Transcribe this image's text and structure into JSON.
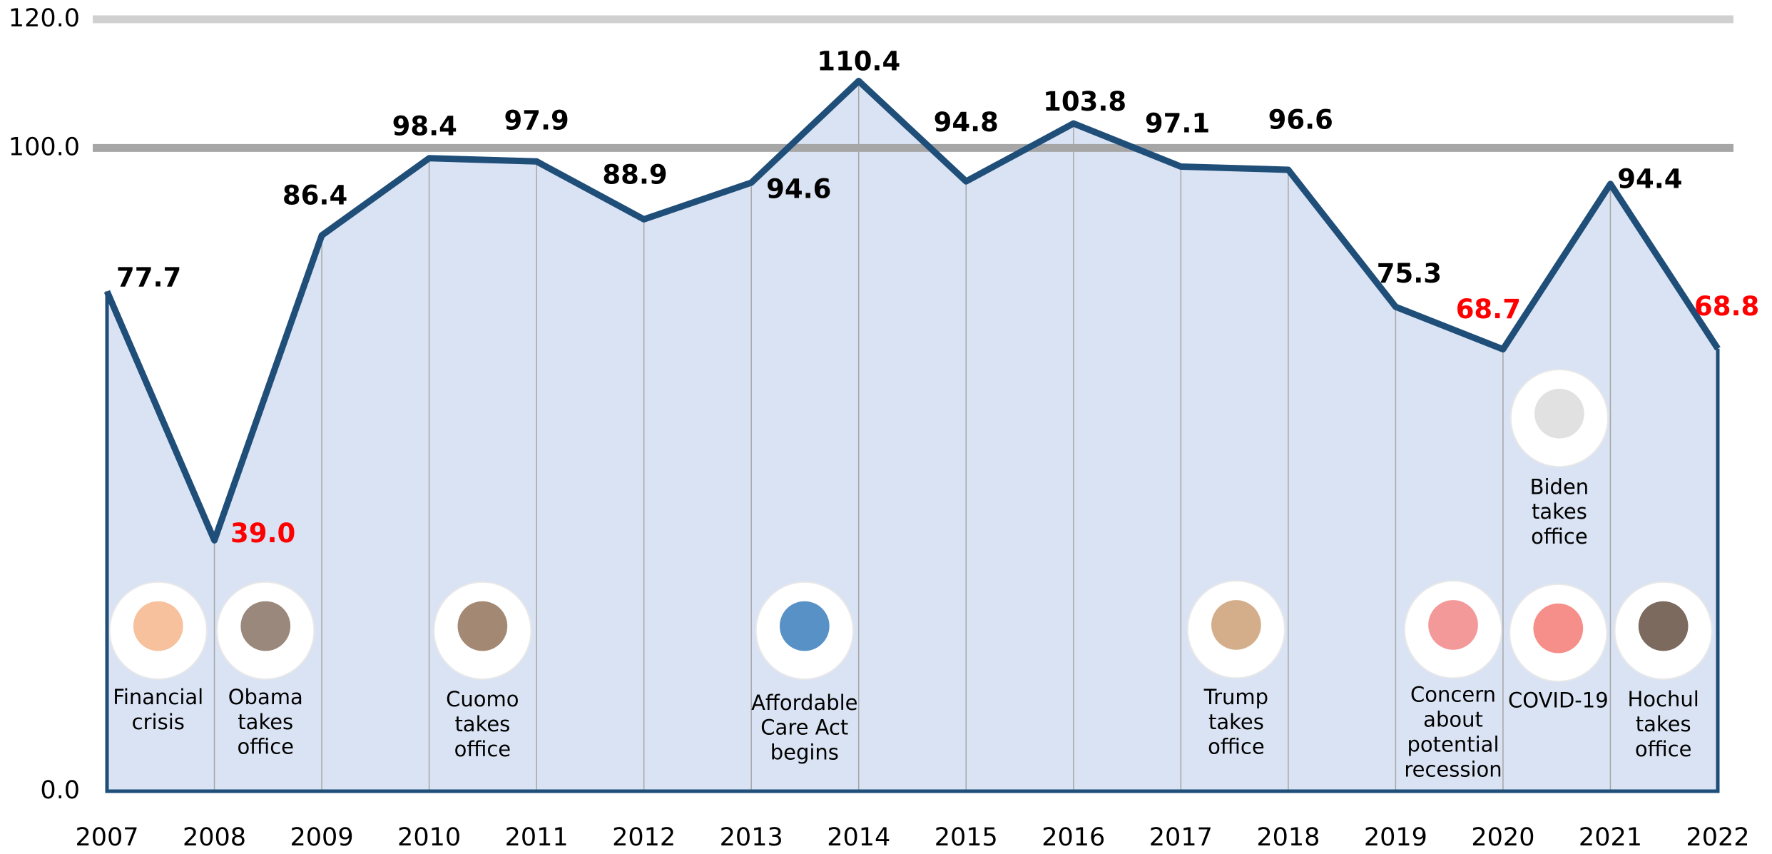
{
  "chart_data": {
    "type": "line",
    "categories": [
      "2007",
      "2008",
      "2009",
      "2010",
      "2011",
      "2012",
      "2013",
      "2014",
      "2015",
      "2016",
      "2017",
      "2018",
      "2019",
      "2020",
      "2021",
      "2022"
    ],
    "values": [
      77.7,
      39.0,
      86.4,
      98.4,
      97.9,
      88.9,
      94.6,
      110.4,
      94.8,
      103.8,
      97.1,
      96.6,
      75.3,
      68.7,
      94.4,
      68.8
    ],
    "value_labels": [
      "77.7",
      "39.0",
      "86.4",
      "98.4",
      "97.9",
      "88.9",
      "94.6",
      "110.4",
      "94.8",
      "103.8",
      "97.1",
      "96.6",
      "75.3",
      "68.7",
      "94.4",
      "68.8"
    ],
    "label_colors": [
      "#000000",
      "#ff0000",
      "#000000",
      "#000000",
      "#000000",
      "#000000",
      "#000000",
      "#000000",
      "#000000",
      "#000000",
      "#000000",
      "#000000",
      "#000000",
      "#ff0000",
      "#000000",
      "#ff0000"
    ],
    "color": "#1f4e79",
    "fill": "#dae3f3",
    "ylim": [
      0,
      120
    ],
    "yticks": [
      {
        "value": 0,
        "label": "0.0"
      },
      {
        "value": 100,
        "label": "100.0"
      },
      {
        "value": 120,
        "label": "120.0"
      }
    ],
    "annotations": [
      {
        "lines": [
          "Financial",
          "crisis"
        ]
      },
      {
        "lines": [
          "Obama",
          "takes",
          "office"
        ]
      },
      {
        "lines": [
          "Cuomo",
          "takes",
          "office"
        ]
      },
      {
        "lines": [
          "Affordable",
          "Care Act",
          "begins"
        ]
      },
      {
        "lines": [
          "Trump",
          "takes",
          "office"
        ]
      },
      {
        "lines": [
          "Concern",
          "about",
          "potential",
          "recession"
        ]
      },
      {
        "lines": [
          "COVID-19"
        ]
      },
      {
        "lines": [
          "Hochul",
          "takes",
          "office"
        ]
      },
      {
        "lines": [
          "Biden",
          "takes",
          "office"
        ]
      }
    ]
  }
}
